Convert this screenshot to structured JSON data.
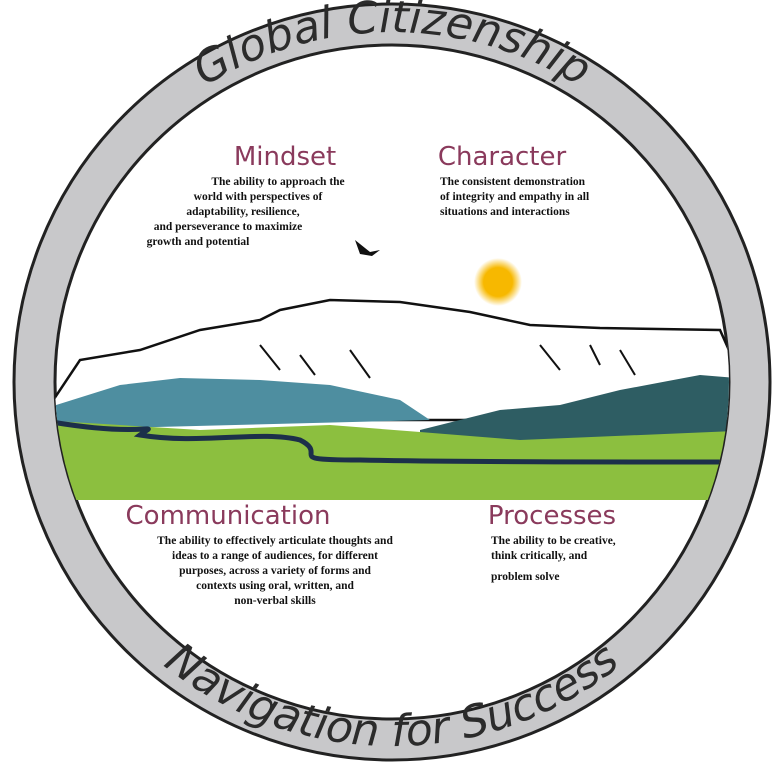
{
  "ring": {
    "top": "Global Citizenship",
    "bottom": "Navigation for Success"
  },
  "sections": [
    {
      "title": "Mindset",
      "lines": [
        "The ability to approach the",
        "world with perspectives of",
        "adaptability, resilience,",
        "and perseverance to maximize",
        "growth and potential"
      ]
    },
    {
      "title": "Character",
      "lines": [
        "The consistent demonstration",
        "of integrity and empathy in all",
        "situations and interactions"
      ]
    },
    {
      "title": "Communication",
      "lines": [
        "The ability to effectively articulate thoughts and",
        "ideas to a range of audiences, for different",
        "purposes, across a variety of forms and",
        "contexts using oral, written, and",
        "non-verbal skills"
      ]
    },
    {
      "title": "Processes",
      "lines": [
        "The ability to be creative,",
        "think critically, and",
        "problem solve"
      ]
    }
  ]
}
